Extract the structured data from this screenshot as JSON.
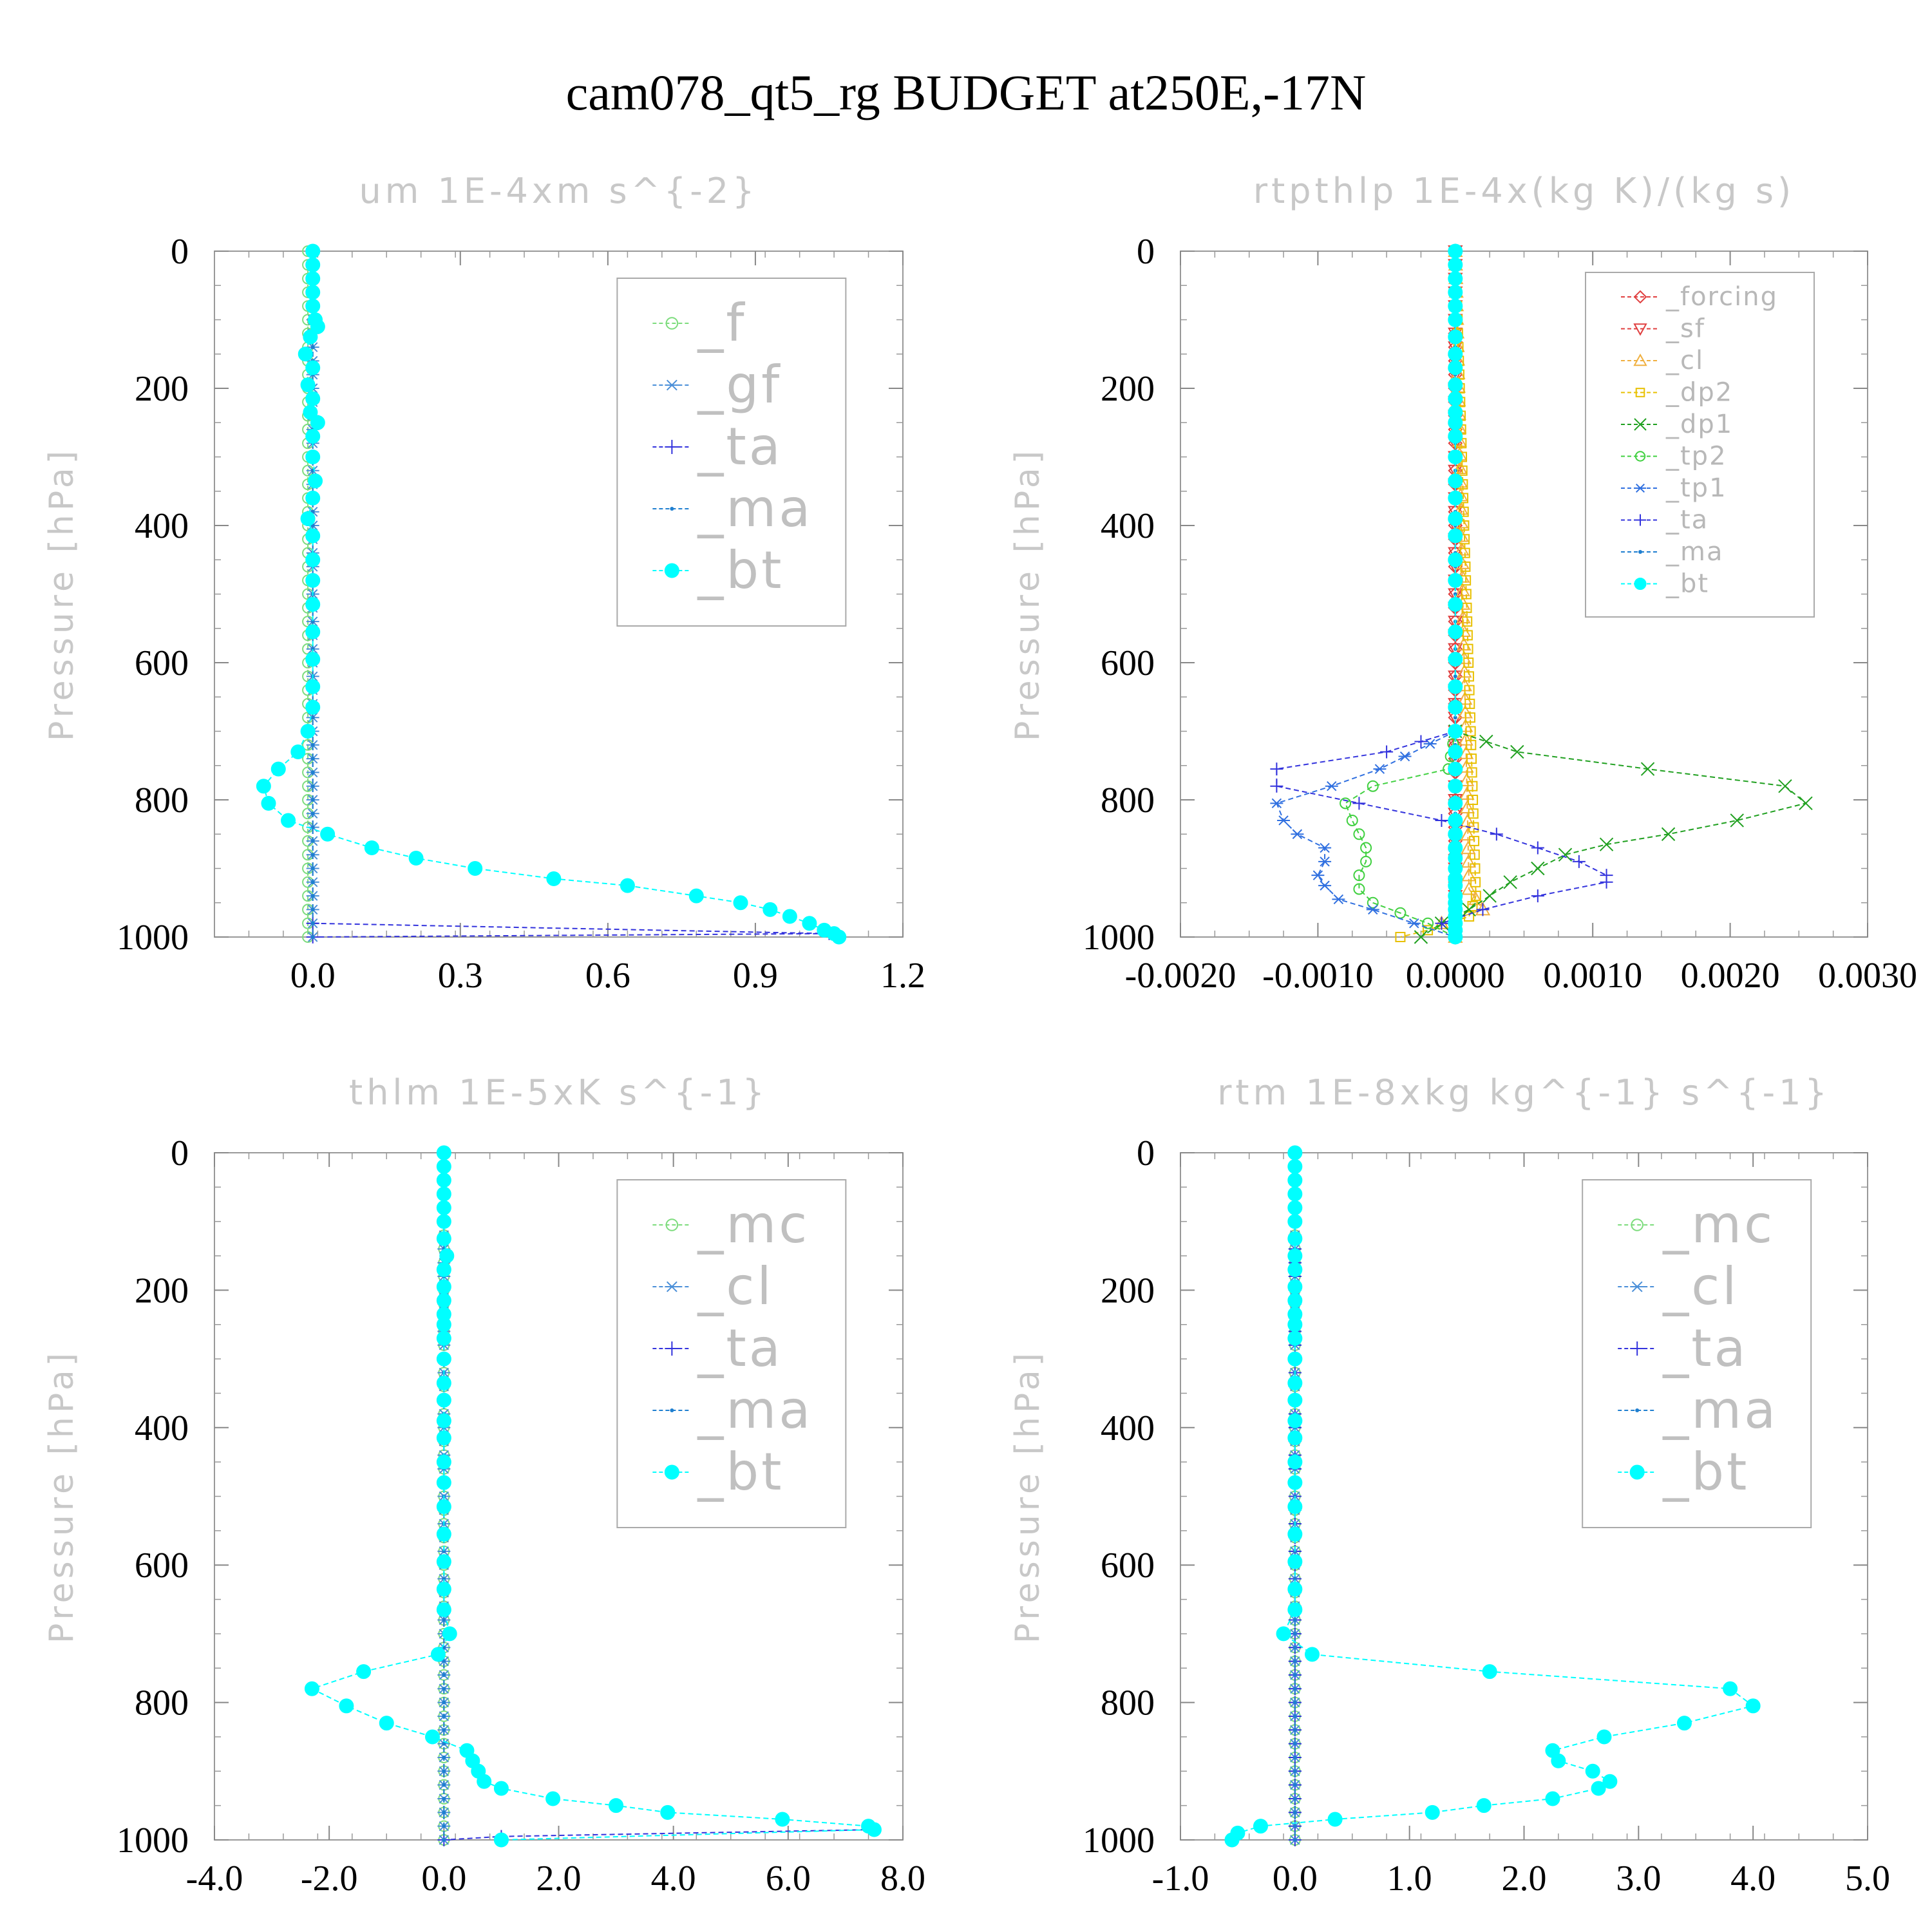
{
  "figure_title": "cam078_qt5_rg  BUDGET at250E,-17N",
  "colors": {
    "f": "#7ddc7d",
    "gf": "#4a8fd8",
    "ta": "#3333dd",
    "ma": "#1f7fd0",
    "bt": "#00ffff",
    "forcing": "#e04040",
    "sf": "#e04040",
    "cl": "#f0b040",
    "dp2": "#e8c000",
    "dp1": "#20a020",
    "tp2": "#40d040",
    "tp1": "#3070e0",
    "mc": "#7ddc7d",
    "cl2": "#4a8fd8"
  },
  "chart_data": [
    {
      "type": "line",
      "title": "um  1E-4xm s^{-2}",
      "ylabel": "Pressure [hPa]",
      "ylim": [
        1000,
        0
      ],
      "xlim": [
        -0.2,
        1.2
      ],
      "xticks": [
        0.0,
        0.3,
        0.6,
        0.9,
        1.2
      ],
      "xtick_labels": [
        "0.0",
        "0.3",
        "0.6",
        "0.9",
        "1.2"
      ],
      "yticks": [
        0,
        200,
        400,
        600,
        800,
        1000
      ],
      "ytick_labels": [
        "0",
        "200",
        "400",
        "600",
        "800",
        "1000"
      ],
      "legend_style": "big",
      "legend": [
        "_f",
        "_gf",
        "_ta",
        "_ma",
        "_bt"
      ],
      "series": [
        {
          "name": "_f",
          "key": "f",
          "marker": "circle",
          "y": [
            0,
            100,
            200,
            300,
            400,
            500,
            600,
            700,
            800,
            900,
            1000
          ],
          "x": [
            -0.01,
            -0.01,
            -0.01,
            -0.01,
            -0.01,
            -0.01,
            -0.01,
            -0.01,
            -0.01,
            -0.01,
            -0.01
          ]
        },
        {
          "name": "_gf",
          "key": "gf",
          "marker": "star",
          "y": [
            0,
            200,
            400,
            600,
            800,
            1000
          ],
          "x": [
            0.0,
            0.0,
            0.0,
            0.0,
            0.0,
            0.0
          ]
        },
        {
          "name": "_ta",
          "key": "ta",
          "marker": "plus",
          "y": [
            980,
            995,
            1000
          ],
          "x": [
            0.0,
            1.05,
            0.0
          ]
        },
        {
          "name": "_ma",
          "key": "ma",
          "marker": "dot",
          "y": [
            0,
            200,
            400,
            600,
            800,
            1000
          ],
          "x": [
            0.0,
            0.0,
            0.0,
            0.0,
            0.0,
            0.0
          ]
        },
        {
          "name": "_bt",
          "key": "bt",
          "marker": "filled",
          "y": [
            0,
            20,
            40,
            60,
            80,
            100,
            110,
            125,
            150,
            170,
            195,
            215,
            235,
            250,
            270,
            300,
            335,
            360,
            390,
            415,
            450,
            480,
            515,
            555,
            595,
            635,
            665,
            700,
            730,
            755,
            780,
            805,
            830,
            850,
            870,
            885,
            900,
            915,
            925,
            940,
            950,
            960,
            970,
            980,
            990,
            995,
            1000
          ],
          "x": [
            0.0,
            0.0,
            0.0,
            0.0,
            0.0,
            0.005,
            0.01,
            -0.005,
            -0.015,
            0.0,
            -0.01,
            0.0,
            -0.005,
            0.01,
            0.0,
            0.0,
            0.005,
            0.0,
            -0.01,
            0.0,
            0.0,
            0.0,
            0.0,
            0.0,
            0.0,
            0.0,
            0.0,
            -0.01,
            -0.03,
            -0.07,
            -0.1,
            -0.09,
            -0.05,
            0.03,
            0.12,
            0.21,
            0.33,
            0.49,
            0.64,
            0.78,
            0.87,
            0.93,
            0.97,
            1.01,
            1.04,
            1.06,
            1.07
          ]
        }
      ]
    },
    {
      "type": "line",
      "title": "rtpthlp  1E-4x(kg K)/(kg s)",
      "ylabel": "Pressure [hPa]",
      "ylim": [
        1000,
        0
      ],
      "xlim": [
        -0.002,
        0.003
      ],
      "xticks": [
        -0.002,
        -0.001,
        0.0,
        0.001,
        0.002,
        0.003
      ],
      "xtick_labels": [
        "-0.0020",
        "-0.0010",
        "0.0000",
        "0.0010",
        "0.0020",
        "0.0030"
      ],
      "yticks": [
        0,
        200,
        400,
        600,
        800,
        1000
      ],
      "ytick_labels": [
        "0",
        "200",
        "400",
        "600",
        "800",
        "1000"
      ],
      "legend_style": "small",
      "legend": [
        "_forcing",
        "_sf",
        "_cl",
        "_dp2",
        "_dp1",
        "_tp2",
        "_tp1",
        "_ta",
        "_ma",
        "_bt"
      ],
      "series": [
        {
          "name": "_forcing",
          "key": "forcing",
          "marker": "diamond",
          "y": [
            0,
            1000
          ],
          "x": [
            0.0,
            0.0
          ]
        },
        {
          "name": "_sf",
          "key": "sf",
          "marker": "tri-down",
          "y": [
            0,
            1000
          ],
          "x": [
            0.0,
            0.0
          ]
        },
        {
          "name": "_cl",
          "key": "cl",
          "marker": "tri-up",
          "y": [
            0,
            930,
            960,
            980,
            1000
          ],
          "x": [
            0.0,
            0.0001,
            0.0002,
            -0.0001,
            0.0
          ]
        },
        {
          "name": "_dp2",
          "key": "dp2",
          "marker": "square",
          "y": [
            0,
            940,
            970,
            990,
            1000
          ],
          "x": [
            0.0,
            0.00015,
            0.0001,
            -0.0002,
            -0.0004
          ]
        },
        {
          "name": "_dp1",
          "key": "dp1",
          "marker": "x",
          "y": [
            700,
            730,
            755,
            780,
            805,
            830,
            850,
            865,
            880,
            900,
            920,
            940,
            960,
            980,
            1000
          ],
          "x": [
            0.0,
            0.00045,
            0.0014,
            0.0024,
            0.00255,
            0.00205,
            0.00155,
            0.0011,
            0.0008,
            0.0006,
            0.0004,
            0.00025,
            0.0001,
            -0.0001,
            -0.00025
          ]
        },
        {
          "name": "_tp2",
          "key": "tp2",
          "marker": "circle",
          "y": [
            700,
            755,
            780,
            805,
            830,
            850,
            870,
            890,
            910,
            930,
            950,
            965,
            980,
            1000
          ],
          "x": [
            0.0,
            -5e-05,
            -0.0006,
            -0.0008,
            -0.00075,
            -0.0007,
            -0.00065,
            -0.00065,
            -0.0007,
            -0.0007,
            -0.0006,
            -0.0004,
            -0.0002,
            0.0
          ]
        },
        {
          "name": "_tp1",
          "key": "tp1",
          "marker": "star",
          "y": [
            700,
            755,
            780,
            805,
            830,
            850,
            870,
            890,
            910,
            925,
            945,
            960,
            980,
            1000
          ],
          "x": [
            0.0,
            -0.00055,
            -0.0009,
            -0.0013,
            -0.00125,
            -0.00115,
            -0.00095,
            -0.00095,
            -0.001,
            -0.00095,
            -0.00085,
            -0.0006,
            -0.0003,
            0.0
          ]
        },
        {
          "name": "_ta",
          "key": "ta",
          "marker": "plus",
          "y": [
            700,
            730,
            755,
            780,
            805,
            830,
            850,
            870,
            890,
            910,
            920,
            940,
            960,
            980,
            1000
          ],
          "x": [
            0.0,
            -0.0005,
            -0.0013,
            -0.0013,
            -0.0007,
            -0.0001,
            0.0003,
            0.0006,
            0.0009,
            0.0011,
            0.0011,
            0.0006,
            0.0002,
            -0.0001,
            0.0
          ]
        },
        {
          "name": "_ma",
          "key": "ma",
          "marker": "dot",
          "y": [
            0,
            1000
          ],
          "x": [
            0.0,
            0.0
          ]
        },
        {
          "name": "_bt",
          "key": "bt",
          "marker": "filled",
          "y": [
            0,
            20,
            40,
            60,
            80,
            100,
            125,
            150,
            170,
            195,
            215,
            235,
            250,
            270,
            300,
            335,
            360,
            390,
            415,
            450,
            480,
            515,
            555,
            595,
            635,
            665,
            700,
            730,
            755,
            780,
            805,
            830,
            850,
            870,
            885,
            900,
            915,
            925,
            940,
            950,
            960,
            970,
            980,
            990,
            1000
          ],
          "x": [
            0.0,
            0.0,
            0.0,
            0.0,
            0.0,
            0.0,
            0.0,
            0.0,
            0.0,
            0.0,
            0.0,
            0.0,
            0.0,
            0.0,
            0.0,
            0.0,
            0.0,
            0.0,
            0.0,
            0.0,
            0.0,
            0.0,
            0.0,
            0.0,
            0.0,
            0.0,
            0.0,
            0.0,
            0.0,
            0.0,
            0.0,
            0.0,
            0.0,
            0.0,
            0.0,
            0.0,
            0.0,
            0.0,
            0.0,
            0.0,
            0.0,
            0.0,
            0.0,
            0.0,
            0.0
          ]
        }
      ]
    },
    {
      "type": "line",
      "title": "thlm  1E-5xK s^{-1}",
      "ylabel": "Pressure [hPa]",
      "ylim": [
        1000,
        0
      ],
      "xlim": [
        -4.0,
        8.0
      ],
      "xticks": [
        -4.0,
        -2.0,
        0.0,
        2.0,
        4.0,
        6.0,
        8.0
      ],
      "xtick_labels": [
        "-4.0",
        "-2.0",
        "0.0",
        "2.0",
        "4.0",
        "6.0",
        "8.0"
      ],
      "yticks": [
        0,
        200,
        400,
        600,
        800,
        1000
      ],
      "ytick_labels": [
        "0",
        "200",
        "400",
        "600",
        "800",
        "1000"
      ],
      "legend_style": "big",
      "legend": [
        "_mc",
        "_cl",
        "_ta",
        "_ma",
        "_bt"
      ],
      "series": [
        {
          "name": "_mc",
          "key": "mc",
          "marker": "circle",
          "y": [
            0,
            100,
            200,
            300,
            400,
            500,
            600,
            700,
            800,
            900,
            1000
          ],
          "x": [
            0.0,
            0.0,
            0.0,
            0.0,
            0.0,
            0.0,
            0.0,
            0.0,
            0.0,
            0.0,
            0.0
          ]
        },
        {
          "name": "_cl",
          "key": "cl2",
          "marker": "star",
          "y": [
            0,
            200,
            400,
            600,
            800,
            1000
          ],
          "x": [
            0.0,
            0.0,
            0.0,
            0.0,
            0.0,
            0.0
          ]
        },
        {
          "name": "_ta",
          "key": "ta",
          "marker": "plus",
          "y": [
            985,
            995,
            1000
          ],
          "x": [
            7.5,
            1.0,
            0.0
          ]
        },
        {
          "name": "_ma",
          "key": "ma",
          "marker": "dot",
          "y": [
            0,
            200,
            400,
            600,
            800,
            1000
          ],
          "x": [
            0.0,
            0.0,
            0.0,
            0.0,
            0.0,
            0.0
          ]
        },
        {
          "name": "_bt",
          "key": "bt",
          "marker": "filled",
          "y": [
            0,
            20,
            40,
            60,
            80,
            100,
            125,
            150,
            170,
            195,
            215,
            235,
            250,
            270,
            300,
            335,
            360,
            390,
            415,
            450,
            480,
            515,
            555,
            595,
            635,
            665,
            700,
            730,
            755,
            780,
            805,
            830,
            850,
            870,
            885,
            900,
            915,
            925,
            940,
            950,
            960,
            970,
            980,
            985,
            1000
          ],
          "x": [
            0.0,
            0.0,
            0.0,
            0.0,
            0.0,
            0.0,
            0.0,
            0.05,
            0.0,
            0.0,
            0.0,
            0.0,
            0.0,
            0.0,
            0.0,
            0.0,
            0.0,
            0.0,
            0.0,
            0.0,
            0.0,
            0.0,
            0.0,
            0.0,
            0.0,
            0.0,
            0.1,
            -0.1,
            -1.4,
            -2.3,
            -1.7,
            -1.0,
            -0.2,
            0.4,
            0.5,
            0.6,
            0.7,
            1.0,
            1.9,
            3.0,
            3.9,
            5.9,
            7.4,
            7.5,
            1.0
          ]
        }
      ]
    },
    {
      "type": "line",
      "title": "rtm  1E-8xkg kg^{-1} s^{-1}",
      "ylabel": "Pressure [hPa]",
      "ylim": [
        1000,
        0
      ],
      "xlim": [
        -1.0,
        5.0
      ],
      "xticks": [
        -1.0,
        0.0,
        1.0,
        2.0,
        3.0,
        4.0,
        5.0
      ],
      "xtick_labels": [
        "-1.0",
        "0.0",
        "1.0",
        "2.0",
        "3.0",
        "4.0",
        "5.0"
      ],
      "yticks": [
        0,
        200,
        400,
        600,
        800,
        1000
      ],
      "ytick_labels": [
        "0",
        "200",
        "400",
        "600",
        "800",
        "1000"
      ],
      "legend_style": "big",
      "legend": [
        "_mc",
        "_cl",
        "_ta",
        "_ma",
        "_bt"
      ],
      "series": [
        {
          "name": "_mc",
          "key": "mc",
          "marker": "circle",
          "y": [
            0,
            100,
            200,
            300,
            400,
            500,
            600,
            700,
            800,
            900,
            1000
          ],
          "x": [
            0.0,
            0.0,
            0.0,
            0.0,
            0.0,
            0.0,
            0.0,
            0.0,
            0.0,
            0.0,
            0.0
          ]
        },
        {
          "name": "_cl",
          "key": "cl2",
          "marker": "star",
          "y": [
            0,
            200,
            400,
            600,
            800,
            1000
          ],
          "x": [
            0.0,
            0.0,
            0.0,
            0.0,
            0.0,
            0.0
          ]
        },
        {
          "name": "_ta",
          "key": "ta",
          "marker": "plus",
          "y": [
            0,
            500,
            1000
          ],
          "x": [
            0.0,
            0.0,
            0.0
          ]
        },
        {
          "name": "_ma",
          "key": "ma",
          "marker": "dot",
          "y": [
            0,
            500,
            1000
          ],
          "x": [
            0.0,
            0.0,
            0.0
          ]
        },
        {
          "name": "_bt",
          "key": "bt",
          "marker": "filled",
          "y": [
            0,
            20,
            40,
            60,
            80,
            100,
            125,
            150,
            170,
            195,
            215,
            235,
            250,
            270,
            300,
            335,
            360,
            390,
            415,
            450,
            480,
            515,
            555,
            595,
            635,
            665,
            700,
            730,
            755,
            780,
            805,
            830,
            850,
            870,
            885,
            900,
            915,
            925,
            940,
            950,
            960,
            970,
            980,
            990,
            1000
          ],
          "x": [
            0.0,
            0.0,
            0.0,
            0.0,
            0.0,
            0.0,
            0.0,
            0.0,
            0.0,
            0.0,
            0.0,
            0.0,
            0.0,
            0.0,
            0.0,
            0.0,
            0.0,
            0.0,
            0.0,
            0.0,
            0.0,
            0.0,
            0.0,
            0.0,
            0.0,
            0.0,
            -0.1,
            0.15,
            1.7,
            3.8,
            4.0,
            3.4,
            2.7,
            2.25,
            2.3,
            2.6,
            2.75,
            2.65,
            2.25,
            1.65,
            1.2,
            0.35,
            -0.3,
            -0.5,
            -0.55
          ]
        }
      ]
    }
  ]
}
